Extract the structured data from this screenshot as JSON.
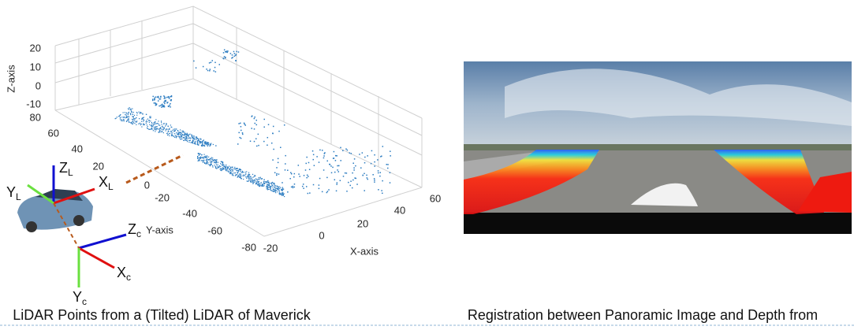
{
  "left_panel": {
    "z_axis": {
      "label": "Z-axis",
      "ticks": [
        "20",
        "10",
        "0",
        "-10"
      ]
    },
    "y_axis": {
      "label": "Y-axis",
      "ticks": [
        "80",
        "60",
        "40",
        "20",
        "0",
        "-20",
        "-40",
        "-60",
        "-80"
      ]
    },
    "x_axis": {
      "label": "X-axis",
      "ticks": [
        "-20",
        "0",
        "20",
        "40",
        "60"
      ]
    },
    "frames": [
      {
        "main": "Z",
        "sub": "L"
      },
      {
        "main": "X",
        "sub": "L"
      },
      {
        "main": "Y",
        "sub": "L"
      },
      {
        "main": "Z",
        "sub": "c"
      },
      {
        "main": "X",
        "sub": "c"
      },
      {
        "main": "Y",
        "sub": "c"
      }
    ],
    "caption": "LiDAR Points from a (Tilted) LiDAR of Maverick"
  },
  "right_panel": {
    "caption": "Registration between Panoramic Image and Depth from"
  }
}
